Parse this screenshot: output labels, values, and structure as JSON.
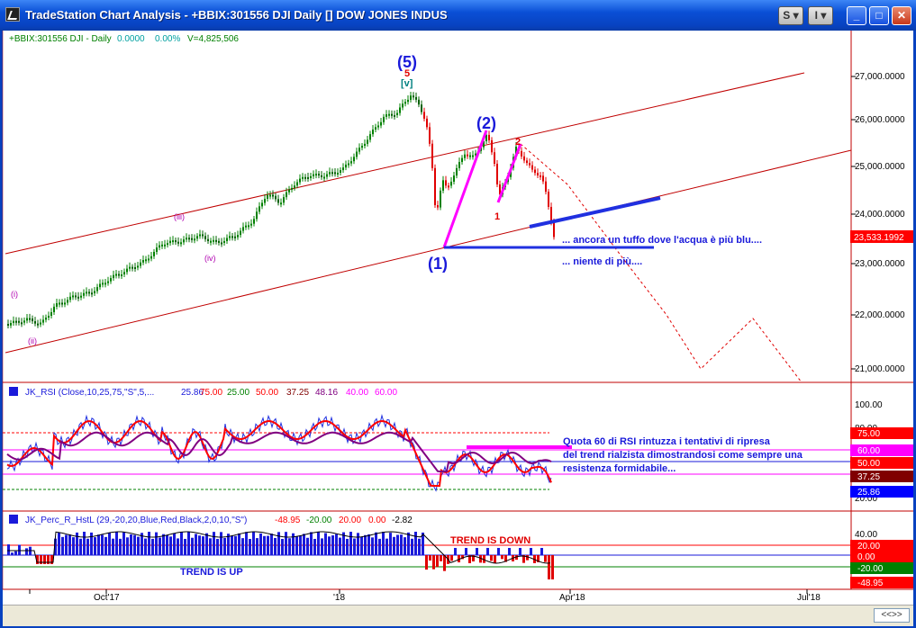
{
  "window": {
    "title": "TradeStation Chart Analysis - +BBIX:301556 DJI Daily [] DOW JONES INDUS",
    "buttons": {
      "s_label": "S",
      "i_label": "I",
      "minimize": "_",
      "maximize": "□",
      "close": "✕"
    },
    "colors": {
      "titlebar": "#0842C0",
      "close": "#C9381A"
    }
  },
  "price_panel": {
    "header": {
      "symbol": "+BBIX:301556 DJI - Daily",
      "change": "0.0000",
      "pct": "0.00%",
      "volume": "V=4,825,506"
    },
    "axis_labels": [
      "27,000.0000",
      "26,000.0000",
      "25,000.0000",
      "24,000.0000",
      "23,000.0000",
      "22,000.0000",
      "21,000.0000"
    ],
    "last_price": "23,533.1992",
    "wave_labels": {
      "w5": "(5)",
      "w5_red": "5",
      "w5_v": "[v]",
      "w2": "(2)",
      "w1": "(1)",
      "red1": "1",
      "red2": "2",
      "iii": "(iii)",
      "iv": "(iv)",
      "i": "(i)",
      "ii": "(ii)"
    },
    "annotations": [
      "... ancora un tuffo dove l'acqua è più blu....",
      "... niente di più...."
    ]
  },
  "rsi_panel": {
    "header": {
      "name": "JK_RSI (Close,10,25,75,\"S\",5,...",
      "v1": "25.86",
      "v2": "75.00",
      "v3": "25.00",
      "v4": "50.00",
      "v5": "37.25",
      "v6": "48.16",
      "v7": "40.00",
      "v8": "60.00"
    },
    "axis_labels": [
      "100.00",
      "80.00",
      "20.00"
    ],
    "tags": [
      {
        "text": "75.00",
        "color": "#FF0000"
      },
      {
        "text": "60.00",
        "color": "#FF00FF"
      },
      {
        "text": "50.00",
        "color": "#FF0000"
      },
      {
        "text": "37.25",
        "color": "#800000"
      },
      {
        "text": "25.86",
        "color": "#0000FF"
      }
    ],
    "annotation": [
      "Quota 60 di RSI rintuzza i tentativi  di ripresa",
      "del trend rialzista dimostrandosi come sempre una",
      "resistenza formidabile..."
    ]
  },
  "perc_panel": {
    "header": {
      "name": "JK_Perc_R_HstL (29,-20,20,Blue,Red,Black,2,0,10,\"S\")",
      "v1": "-48.95",
      "v2": "-20.00",
      "v3": "20.00",
      "v4": "0.00",
      "v5": "-2.82"
    },
    "axis_labels": [
      "40.00"
    ],
    "tags": [
      {
        "text": "20.00",
        "color": "#FF0000"
      },
      {
        "text": "0.00",
        "color": "#FF0000"
      },
      {
        "text": "-20.00",
        "color": "#008000"
      },
      {
        "text": "-48.95",
        "color": "#FF0000"
      }
    ],
    "trend_down": "TREND IS DOWN",
    "trend_up": "TREND IS UP"
  },
  "time_axis": [
    "Oct'17",
    "'18",
    "Apr'18",
    "Jul'18"
  ],
  "status": {
    "scroll": "<<>>"
  }
}
